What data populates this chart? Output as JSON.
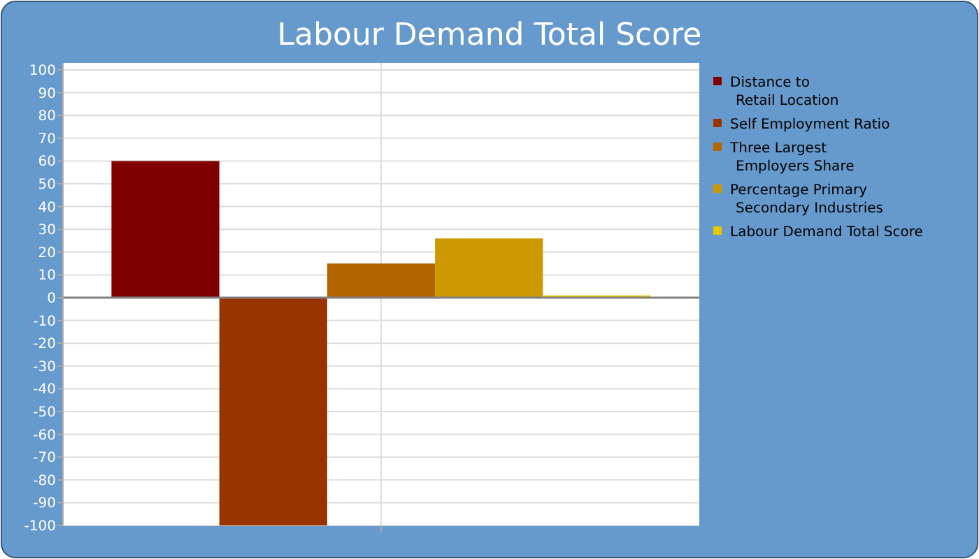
{
  "chart_data": {
    "type": "bar",
    "title": "Labour Demand Total Score",
    "categories": [
      null
    ],
    "series": [
      {
        "name": "Distance to\nRetail Location",
        "color": "#800000",
        "values": [
          60
        ]
      },
      {
        "name": "Self Employment Ratio",
        "color": "#993300",
        "values": [
          -100
        ]
      },
      {
        "name": "Three Largest\nEmployers Share",
        "color": "#b36600",
        "values": [
          15
        ]
      },
      {
        "name": "Percentage Primary\nSecondary Industries",
        "color": "#cc9900",
        "values": [
          26
        ]
      },
      {
        "name": "Labour Demand Total Score",
        "color": "#e6c800",
        "values": [
          1
        ]
      }
    ],
    "ylim": [
      -100,
      100
    ],
    "yticks": [
      -100,
      -90,
      -80,
      -70,
      -60,
      -50,
      -40,
      -30,
      -20,
      -10,
      0,
      10,
      20,
      30,
      40,
      50,
      60,
      70,
      80,
      90,
      100
    ],
    "grid": true,
    "legend": "right"
  }
}
